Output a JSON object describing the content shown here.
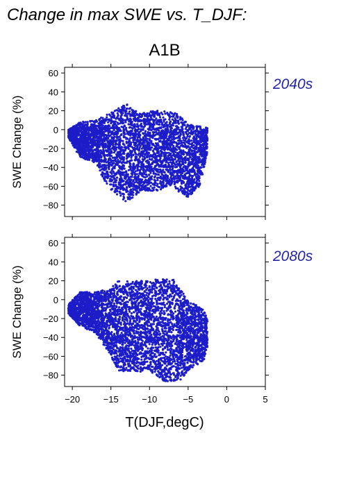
{
  "figure": {
    "title": "Change in max SWE vs. T_DJF:",
    "scenario": "A1B",
    "xlabel": "T(DJF,degC)"
  },
  "colors": {
    "points": "#1c1cc8",
    "period_label": "#2323a8",
    "axes": "#000000"
  },
  "chart_data": [
    {
      "type": "scatter",
      "period": "2040s",
      "ylabel": "SWE Change (%)",
      "xlim": [
        -21,
        5
      ],
      "ylim": [
        -92,
        66
      ],
      "x_ticks": [
        -20,
        -15,
        -10,
        -5,
        0,
        5
      ],
      "y_ticks": [
        -80,
        -60,
        -40,
        -20,
        0,
        20,
        40,
        60
      ],
      "x_tick_labels_shown": false,
      "point_cloud": {
        "x_range": [
          -20.5,
          -2.5
        ],
        "y_max_envelope": [
          [
            -20.5,
            0
          ],
          [
            -19,
            8
          ],
          [
            -17,
            10
          ],
          [
            -14.5,
            20
          ],
          [
            -13,
            28
          ],
          [
            -11.5,
            18
          ],
          [
            -9,
            20
          ],
          [
            -6.5,
            18
          ],
          [
            -5,
            6
          ],
          [
            -2.5,
            2
          ]
        ],
        "y_min_envelope": [
          [
            -20.5,
            -8
          ],
          [
            -19,
            -30
          ],
          [
            -17,
            -35
          ],
          [
            -15.5,
            -60
          ],
          [
            -14,
            -70
          ],
          [
            -13,
            -78
          ],
          [
            -11,
            -65
          ],
          [
            -9,
            -65
          ],
          [
            -7,
            -58
          ],
          [
            -6,
            -70
          ],
          [
            -5,
            -72
          ],
          [
            -3.5,
            -60
          ],
          [
            -2.5,
            -25
          ]
        ],
        "n_points": 4200
      }
    },
    {
      "type": "scatter",
      "period": "2080s",
      "ylabel": "SWE Change (%)",
      "xlim": [
        -21,
        5
      ],
      "ylim": [
        -92,
        66
      ],
      "x_ticks": [
        -20,
        -15,
        -10,
        -5,
        0,
        5
      ],
      "y_ticks": [
        -80,
        -60,
        -40,
        -20,
        0,
        20,
        40,
        60
      ],
      "x_tick_labels": [
        "−20",
        "−15",
        "−10",
        "−5",
        "0",
        "5"
      ],
      "x_tick_labels_shown": true,
      "point_cloud": {
        "x_range": [
          -20.5,
          -2.5
        ],
        "y_max_envelope": [
          [
            -20.5,
            -5
          ],
          [
            -19,
            8
          ],
          [
            -17,
            8
          ],
          [
            -15,
            12
          ],
          [
            -14,
            20
          ],
          [
            -12,
            20
          ],
          [
            -9,
            22
          ],
          [
            -7,
            22
          ],
          [
            -5,
            0
          ],
          [
            -3,
            -10
          ],
          [
            -2.5,
            -20
          ]
        ],
        "y_min_envelope": [
          [
            -20.5,
            -15
          ],
          [
            -19,
            -28
          ],
          [
            -17,
            -35
          ],
          [
            -15.5,
            -55
          ],
          [
            -14,
            -75
          ],
          [
            -12,
            -78
          ],
          [
            -10,
            -75
          ],
          [
            -8,
            -88
          ],
          [
            -6,
            -85
          ],
          [
            -4.5,
            -72
          ],
          [
            -3,
            -65
          ],
          [
            -2.5,
            -50
          ]
        ],
        "n_points": 4400
      }
    }
  ]
}
